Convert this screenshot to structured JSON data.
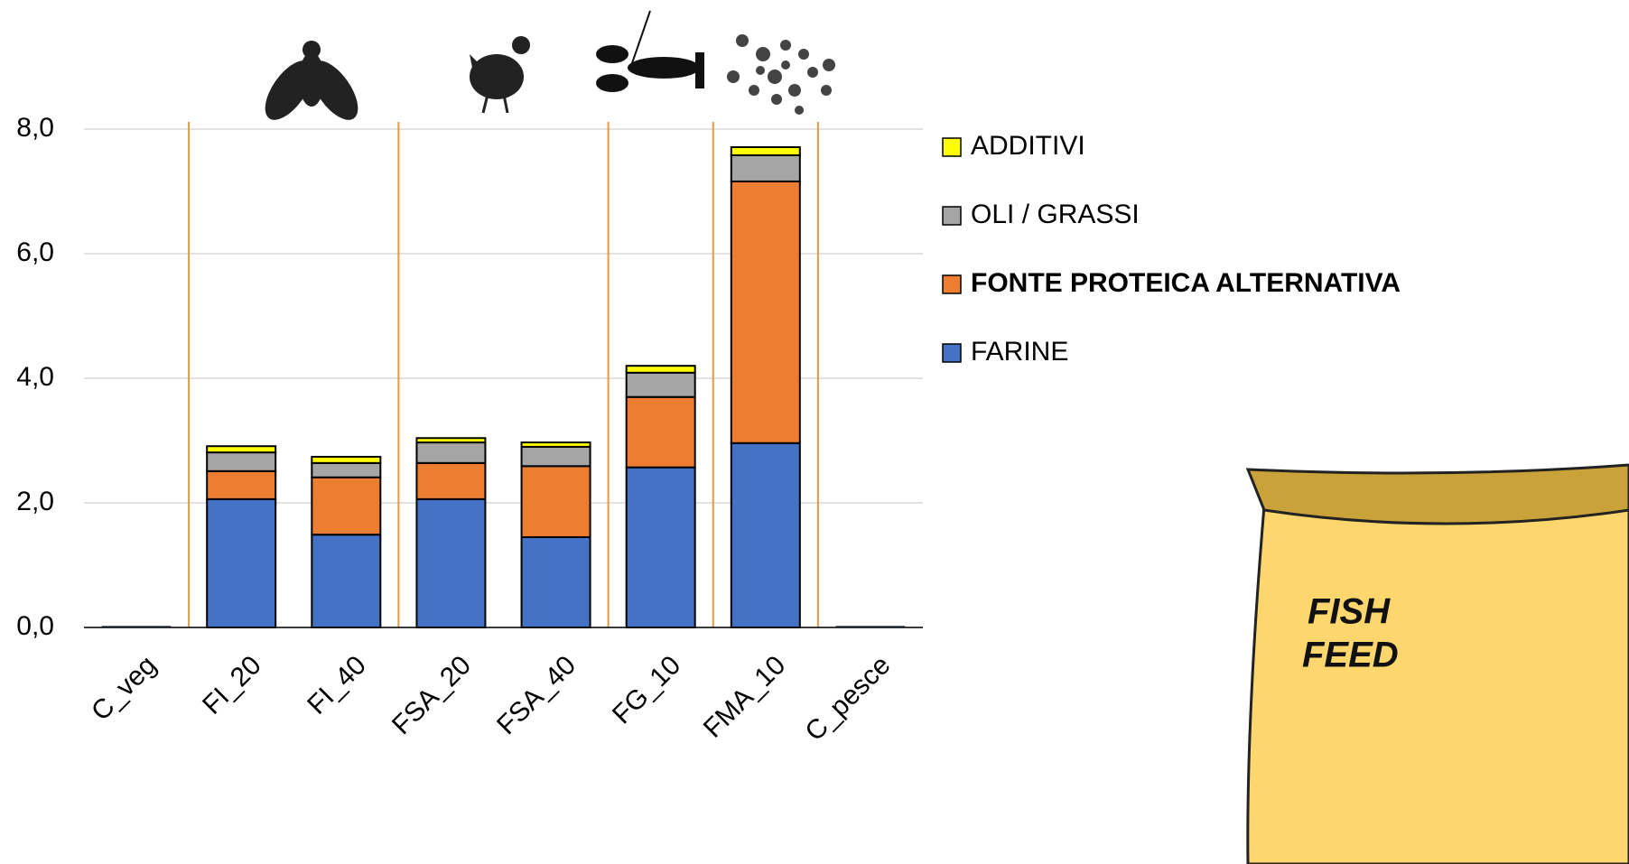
{
  "chart_data": {
    "type": "stacked-bar",
    "categories": [
      "C_veg",
      "FI_20",
      "FI_40",
      "FSA_20",
      "FSA_40",
      "FG_10",
      "FMA_10",
      "C_pesce"
    ],
    "series": [
      {
        "name": "FARINE",
        "color": "#4472c4",
        "values": [
          0.02,
          2.06,
          1.49,
          2.06,
          1.45,
          2.57,
          2.96,
          0.02
        ]
      },
      {
        "name": "FONTE PROTEICA ALTERNATIVA",
        "color": "#ed7d31",
        "values": [
          0,
          0.45,
          0.92,
          0.58,
          1.14,
          1.13,
          4.2,
          0
        ]
      },
      {
        "name": "OLI / GRASSI",
        "color": "#a5a5a5",
        "values": [
          0,
          0.3,
          0.23,
          0.33,
          0.31,
          0.39,
          0.42,
          0
        ]
      },
      {
        "name": "ADDITIVI",
        "color": "#ffff00",
        "values": [
          0,
          0.1,
          0.1,
          0.07,
          0.07,
          0.11,
          0.13,
          0
        ]
      }
    ],
    "ylim": [
      0,
      8
    ],
    "yticks": [
      {
        "value": 0,
        "label": "0,0"
      },
      {
        "value": 2,
        "label": "2,0"
      },
      {
        "value": 4,
        "label": "4,0"
      },
      {
        "value": 6,
        "label": "6,0"
      },
      {
        "value": 8,
        "label": "8,0"
      }
    ],
    "grid": true,
    "legend": "right",
    "annotations": [
      "FISH",
      "FEED"
    ]
  }
}
